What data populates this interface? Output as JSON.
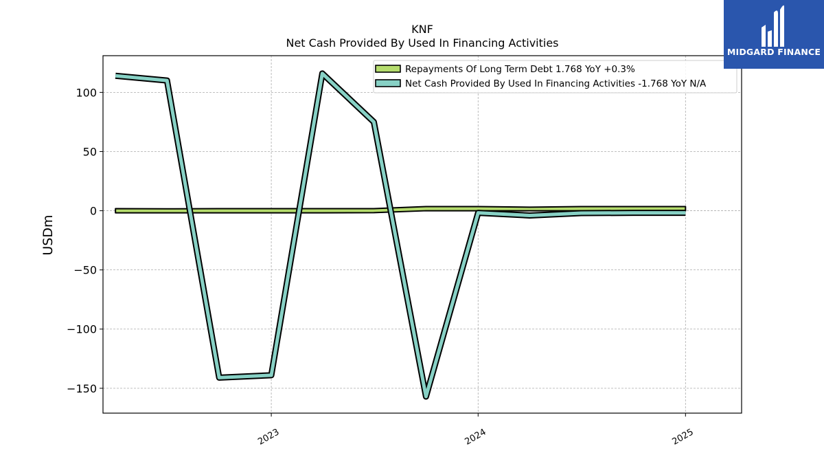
{
  "brand": {
    "name": "MIDGARD FINANCE",
    "bg_color": "#2a56ad",
    "icon": "midgard-logo-icon"
  },
  "chart_data": {
    "type": "line",
    "title": "KNF",
    "subtitle": "Net Cash Provided By Used In Financing Activities",
    "ylabel": "USDm",
    "xlabel": "",
    "ylim": [
      -171,
      131
    ],
    "xlim": [
      "2022-03-10",
      "2025-04-10"
    ],
    "yticks": [
      100,
      50,
      0,
      -50,
      -100,
      -150
    ],
    "ytick_labels": [
      "100",
      "50",
      "0",
      "−50",
      "−100",
      "−150"
    ],
    "xticks": [
      "2023-01-01",
      "2024-01-01",
      "2025-01-01"
    ],
    "xtick_labels": [
      "2023",
      "2024",
      "2025"
    ],
    "grid": true,
    "legend_position": "top-right",
    "series": [
      {
        "name": "Repayments Of Long Term Debt",
        "legend_label": "Repayments Of Long Term Debt  1.768 YoY +0.3%",
        "color": "#b5dc6d",
        "band": true,
        "x": [
          "2022-04-01",
          "2022-07-01",
          "2022-10-01",
          "2023-01-01",
          "2023-04-01",
          "2023-07-01",
          "2023-10-01",
          "2024-01-01",
          "2024-04-01",
          "2024-07-01",
          "2024-10-01",
          "2025-01-01"
        ],
        "upper": [
          1.8,
          1.6,
          1.8,
          1.8,
          1.8,
          1.8,
          3.5,
          3.5,
          3.0,
          3.5,
          3.5,
          3.5
        ],
        "lower": [
          -1.8,
          -1.8,
          -1.8,
          -1.8,
          -1.8,
          -1.6,
          0.0,
          0.0,
          0.0,
          0.0,
          0.0,
          0.0
        ]
      },
      {
        "name": "Net Cash Provided By Used In Financing Activities",
        "legend_label": "Net Cash Provided By Used In Financing Activities  -1.768 YoY N/A",
        "color": "#87d1c5",
        "band": false,
        "x": [
          "2022-04-01",
          "2022-07-01",
          "2022-10-01",
          "2023-01-01",
          "2023-04-01",
          "2023-07-01",
          "2023-10-01",
          "2024-01-01",
          "2024-04-01",
          "2024-07-01",
          "2024-10-01",
          "2025-01-01"
        ],
        "values": [
          114,
          110,
          -141,
          -139,
          116,
          75,
          -157,
          -1.8,
          -4,
          -2,
          -1.8,
          -1.8
        ]
      }
    ]
  }
}
